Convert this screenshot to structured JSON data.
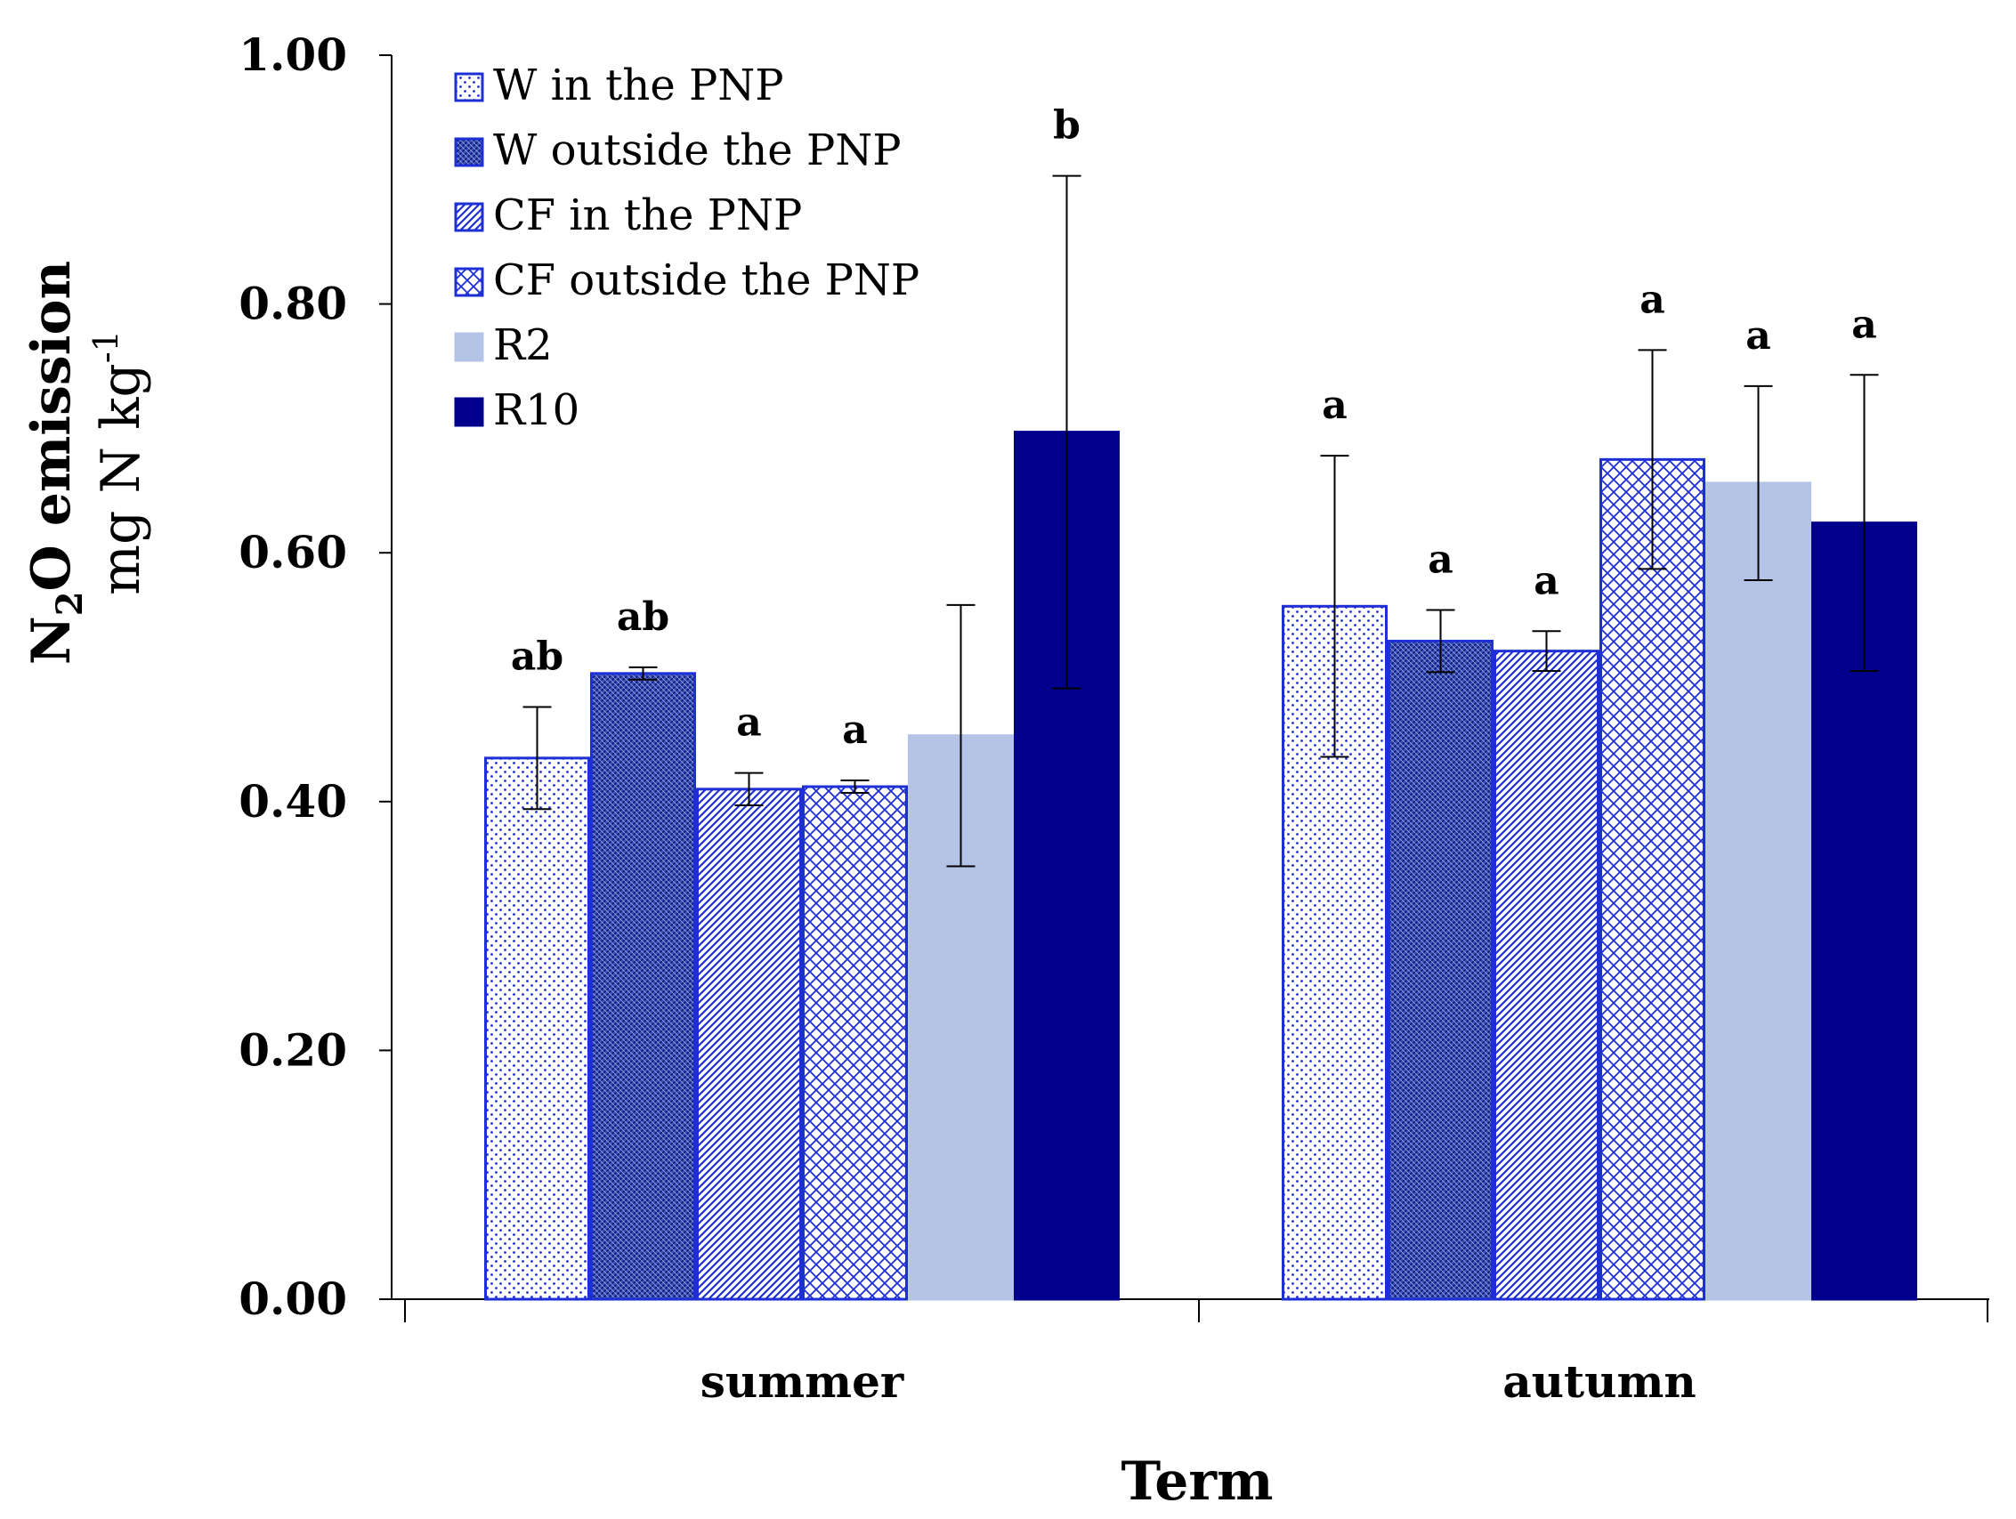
{
  "chart_data": {
    "type": "bar",
    "title": "",
    "xlabel": "Term",
    "ylabel_line1": "N",
    "ylabel_sub": "2",
    "ylabel_line1_rest": "O emission",
    "ylabel_line2": "mg N kg",
    "ylabel_sup": "-1",
    "ylim": [
      0,
      1.0
    ],
    "yticks": [
      "0.00",
      "0.20",
      "0.40",
      "0.60",
      "0.80",
      "1.00"
    ],
    "ytick_values": [
      0,
      0.2,
      0.4,
      0.6,
      0.8,
      1.0
    ],
    "categories": [
      "summer",
      "autumn"
    ],
    "legend_position": "top-left",
    "series": [
      {
        "name": "W in the PNP",
        "pattern": "dots",
        "values": [
          0.435,
          0.557
        ],
        "errors": [
          0.041,
          0.121
        ],
        "sig": [
          "ab",
          "a"
        ]
      },
      {
        "name": "W outside the PNP",
        "pattern": "dense",
        "values": [
          0.503,
          0.529
        ],
        "errors": [
          0.005,
          0.025
        ],
        "sig": [
          "ab",
          "a"
        ]
      },
      {
        "name": "CF in the PNP",
        "pattern": "diag",
        "values": [
          0.41,
          0.521
        ],
        "errors": [
          0.013,
          0.016
        ],
        "sig": [
          "a",
          "a"
        ]
      },
      {
        "name": "CF outside the PNP",
        "pattern": "cross",
        "values": [
          0.412,
          0.675
        ],
        "errors": [
          0.005,
          0.088
        ],
        "sig": [
          "a",
          "a"
        ]
      },
      {
        "name": "R2",
        "pattern": "light",
        "values": [
          0.453,
          0.656
        ],
        "errors": [
          0.105,
          0.078
        ],
        "sig": [
          "",
          "a"
        ]
      },
      {
        "name": "R10",
        "pattern": "dark",
        "values": [
          0.697,
          0.624
        ],
        "errors": [
          0.206,
          0.119
        ],
        "sig": [
          "b",
          "a"
        ]
      }
    ],
    "colors": {
      "outline": "#1f2fd6",
      "light": "#b4c4e6",
      "dark": "#00008c",
      "pattern": "#1f2fd6",
      "axis": "#000000"
    }
  }
}
